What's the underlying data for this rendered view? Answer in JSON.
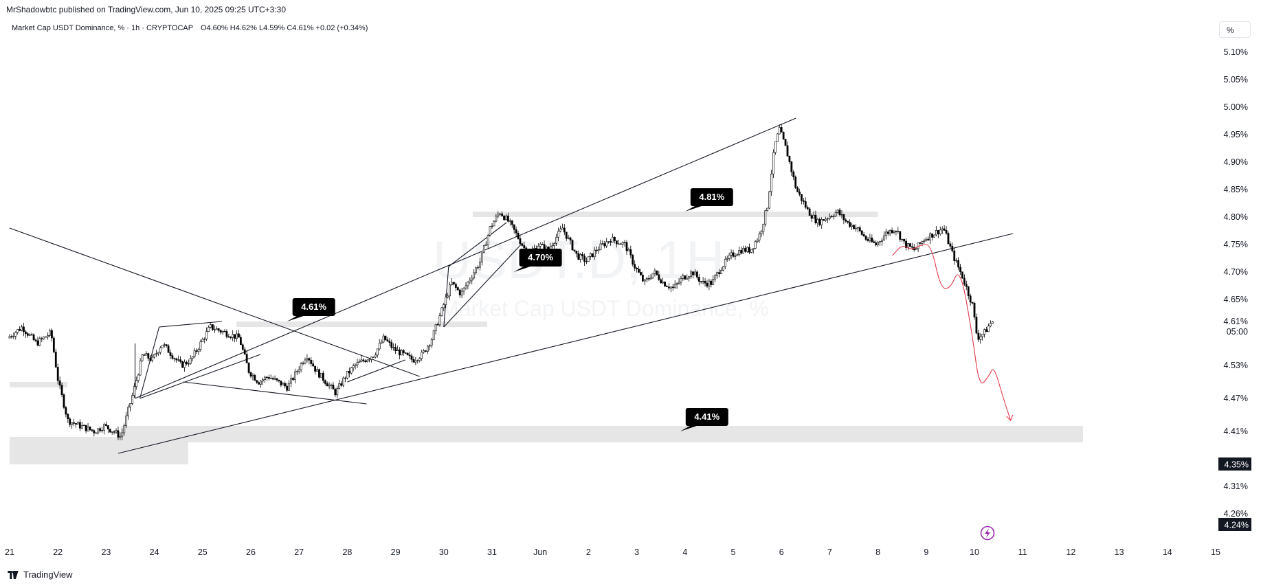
{
  "header": {
    "published_by": "MrShadowbtc published on TradingView.com, Jun 10, 2025 09:25 UTC+3:30"
  },
  "legend": {
    "symbol": "Market Cap USDT Dominance, % · 1h · CRYPTOCAP",
    "open": "O4.60%",
    "high": "H4.62%",
    "low": "L4.59%",
    "close": "C4.61%",
    "change": "+0.02 (+0.34%)"
  },
  "scale_button": {
    "label": "%"
  },
  "watermark": {
    "symbol": "USDT.D, 1H",
    "subtitle": "Market Cap USDT Dominance, %"
  },
  "footer": {
    "brand": "TradingView"
  },
  "icons": {
    "logo": "tradingview-logo-icon",
    "alert": "lightning-icon"
  },
  "colors": {
    "candle": "#000000",
    "zone": "#e6e6e6",
    "projection": "#e0394b",
    "label_bg": "#000000"
  },
  "chart_data": {
    "type": "candlestick",
    "title": "Market Cap USDT Dominance, %",
    "interval": "1h",
    "ylim": [
      4.22,
      5.135
    ],
    "x_ticks": [
      {
        "label": "21",
        "day": 21
      },
      {
        "label": "22",
        "day": 22
      },
      {
        "label": "23",
        "day": 23
      },
      {
        "label": "24",
        "day": 24
      },
      {
        "label": "25",
        "day": 25
      },
      {
        "label": "26",
        "day": 26
      },
      {
        "label": "27",
        "day": 27
      },
      {
        "label": "28",
        "day": 28
      },
      {
        "label": "29",
        "day": 29
      },
      {
        "label": "30",
        "day": 30
      },
      {
        "label": "31",
        "day": 31
      },
      {
        "label": "Jun",
        "day": 32
      },
      {
        "label": "2",
        "day": 33
      },
      {
        "label": "3",
        "day": 34
      },
      {
        "label": "4",
        "day": 35
      },
      {
        "label": "5",
        "day": 36
      },
      {
        "label": "6",
        "day": 37
      },
      {
        "label": "7",
        "day": 38
      },
      {
        "label": "8",
        "day": 39
      },
      {
        "label": "9",
        "day": 40
      },
      {
        "label": "10",
        "day": 41
      },
      {
        "label": "11",
        "day": 42
      },
      {
        "label": "12",
        "day": 43
      },
      {
        "label": "13",
        "day": 44
      },
      {
        "label": "14",
        "day": 45
      },
      {
        "label": "15",
        "day": 46
      }
    ],
    "y_ticks": [
      {
        "label": "5.10%",
        "value": 5.1
      },
      {
        "label": "5.05%",
        "value": 5.05
      },
      {
        "label": "5.00%",
        "value": 5.0
      },
      {
        "label": "4.95%",
        "value": 4.95
      },
      {
        "label": "4.90%",
        "value": 4.9
      },
      {
        "label": "4.85%",
        "value": 4.85
      },
      {
        "label": "4.80%",
        "value": 4.8
      },
      {
        "label": "4.75%",
        "value": 4.75
      },
      {
        "label": "4.70%",
        "value": 4.7
      },
      {
        "label": "4.65%",
        "value": 4.65
      },
      {
        "label": "4.53%",
        "value": 4.53
      },
      {
        "label": "4.47%",
        "value": 4.47
      },
      {
        "label": "4.41%",
        "value": 4.41
      },
      {
        "label": "4.31%",
        "value": 4.31
      },
      {
        "label": "4.26%",
        "value": 4.26
      }
    ],
    "price_badges": [
      {
        "label": "4.61%",
        "value": 4.61,
        "style": "plain",
        "sublabel": "05:00"
      },
      {
        "label": "4.35%",
        "value": 4.35,
        "style": "dark"
      },
      {
        "label": "4.24%",
        "value": 4.24,
        "style": "dark"
      }
    ],
    "series": [
      {
        "name": "USDT.D",
        "price_path": [
          [
            21.0,
            4.58
          ],
          [
            21.3,
            4.6
          ],
          [
            21.6,
            4.57
          ],
          [
            21.9,
            4.59
          ],
          [
            22.05,
            4.5
          ],
          [
            22.25,
            4.43
          ],
          [
            22.5,
            4.42
          ],
          [
            22.8,
            4.41
          ],
          [
            23.0,
            4.42
          ],
          [
            23.2,
            4.41
          ],
          [
            23.35,
            4.4
          ],
          [
            23.6,
            4.48
          ],
          [
            23.8,
            4.55
          ],
          [
            24.0,
            4.54
          ],
          [
            24.2,
            4.57
          ],
          [
            24.4,
            4.55
          ],
          [
            24.6,
            4.53
          ],
          [
            24.8,
            4.54
          ],
          [
            25.0,
            4.57
          ],
          [
            25.2,
            4.6
          ],
          [
            25.5,
            4.59
          ],
          [
            25.8,
            4.58
          ],
          [
            26.0,
            4.52
          ],
          [
            26.2,
            4.5
          ],
          [
            26.4,
            4.51
          ],
          [
            26.6,
            4.5
          ],
          [
            26.8,
            4.49
          ],
          [
            27.0,
            4.52
          ],
          [
            27.2,
            4.55
          ],
          [
            27.4,
            4.52
          ],
          [
            27.6,
            4.5
          ],
          [
            27.8,
            4.48
          ],
          [
            28.0,
            4.51
          ],
          [
            28.2,
            4.53
          ],
          [
            28.4,
            4.54
          ],
          [
            28.6,
            4.55
          ],
          [
            28.8,
            4.58
          ],
          [
            29.0,
            4.56
          ],
          [
            29.2,
            4.55
          ],
          [
            29.4,
            4.54
          ],
          [
            29.6,
            4.55
          ],
          [
            29.8,
            4.58
          ],
          [
            30.0,
            4.63
          ],
          [
            30.2,
            4.68
          ],
          [
            30.4,
            4.66
          ],
          [
            30.6,
            4.69
          ],
          [
            30.8,
            4.72
          ],
          [
            31.0,
            4.78
          ],
          [
            31.2,
            4.81
          ],
          [
            31.4,
            4.79
          ],
          [
            31.6,
            4.76
          ],
          [
            31.8,
            4.73
          ],
          [
            32.0,
            4.75
          ],
          [
            32.2,
            4.74
          ],
          [
            32.5,
            4.78
          ],
          [
            32.8,
            4.73
          ],
          [
            33.0,
            4.72
          ],
          [
            33.2,
            4.74
          ],
          [
            33.5,
            4.76
          ],
          [
            33.8,
            4.75
          ],
          [
            34.0,
            4.71
          ],
          [
            34.2,
            4.68
          ],
          [
            34.4,
            4.7
          ],
          [
            34.6,
            4.68
          ],
          [
            34.8,
            4.67
          ],
          [
            35.0,
            4.69
          ],
          [
            35.2,
            4.7
          ],
          [
            35.4,
            4.68
          ],
          [
            35.6,
            4.68
          ],
          [
            35.8,
            4.71
          ],
          [
            36.0,
            4.73
          ],
          [
            36.2,
            4.74
          ],
          [
            36.4,
            4.74
          ],
          [
            36.6,
            4.77
          ],
          [
            36.75,
            4.82
          ],
          [
            36.9,
            4.93
          ],
          [
            37.0,
            4.96
          ],
          [
            37.15,
            4.92
          ],
          [
            37.35,
            4.85
          ],
          [
            37.6,
            4.81
          ],
          [
            37.8,
            4.79
          ],
          [
            38.0,
            4.8
          ],
          [
            38.2,
            4.81
          ],
          [
            38.4,
            4.79
          ],
          [
            38.6,
            4.78
          ],
          [
            38.8,
            4.76
          ],
          [
            39.0,
            4.75
          ],
          [
            39.2,
            4.77
          ],
          [
            39.4,
            4.78
          ],
          [
            39.6,
            4.75
          ],
          [
            39.8,
            4.74
          ],
          [
            40.0,
            4.76
          ],
          [
            40.2,
            4.77
          ],
          [
            40.4,
            4.78
          ],
          [
            40.6,
            4.73
          ],
          [
            40.8,
            4.69
          ],
          [
            41.0,
            4.64
          ],
          [
            41.1,
            4.58
          ],
          [
            41.25,
            4.59
          ],
          [
            41.4,
            4.61
          ]
        ]
      }
    ],
    "annotations": [
      {
        "text": "4.61%",
        "x": 26.75,
        "y": 4.61
      },
      {
        "text": "4.70%",
        "x": 31.45,
        "y": 4.7
      },
      {
        "text": "4.81%",
        "x": 35.0,
        "y": 4.81
      },
      {
        "text": "4.41%",
        "x": 34.9,
        "y": 4.41
      }
    ],
    "zones": [
      {
        "x0": 21.0,
        "x1": 22.2,
        "y0": 4.49,
        "y1": 4.5
      },
      {
        "x0": 21.0,
        "x1": 24.7,
        "y0": 4.35,
        "y1": 4.4
      },
      {
        "x0": 23.3,
        "x1": 43.25,
        "y0": 4.39,
        "y1": 4.42
      },
      {
        "x0": 25.7,
        "x1": 30.9,
        "y0": 4.6,
        "y1": 4.61
      },
      {
        "x0": 30.6,
        "x1": 39.0,
        "y0": 4.8,
        "y1": 4.81
      }
    ],
    "trendlines": [
      {
        "points": [
          [
            23.6,
            4.47
          ],
          [
            37.3,
            4.98
          ]
        ]
      },
      {
        "points": [
          [
            23.25,
            4.37
          ],
          [
            41.8,
            4.77
          ]
        ]
      },
      {
        "points": [
          [
            21.0,
            4.78
          ],
          [
            29.5,
            4.51
          ]
        ]
      },
      {
        "points": [
          [
            23.6,
            4.57
          ],
          [
            23.6,
            4.47
          ]
        ]
      },
      {
        "points": [
          [
            24.1,
            4.6
          ],
          [
            25.4,
            4.61
          ]
        ]
      },
      {
        "points": [
          [
            24.1,
            4.6
          ],
          [
            23.7,
            4.47
          ]
        ]
      },
      {
        "points": [
          [
            23.7,
            4.47
          ],
          [
            26.2,
            4.55
          ]
        ]
      },
      {
        "points": [
          [
            24.6,
            4.5
          ],
          [
            28.4,
            4.46
          ]
        ]
      },
      {
        "points": [
          [
            28.0,
            4.5
          ],
          [
            29.2,
            4.54
          ]
        ]
      },
      {
        "points": [
          [
            30.1,
            4.71
          ],
          [
            31.3,
            4.79
          ]
        ]
      },
      {
        "points": [
          [
            30.1,
            4.71
          ],
          [
            30.0,
            4.6
          ]
        ]
      },
      {
        "points": [
          [
            30.0,
            4.6
          ],
          [
            31.6,
            4.75
          ]
        ]
      }
    ],
    "projection": {
      "points": [
        [
          39.3,
          4.73
        ],
        [
          39.5,
          4.75
        ],
        [
          39.7,
          4.74
        ],
        [
          39.9,
          4.75
        ],
        [
          40.1,
          4.75
        ],
        [
          40.3,
          4.67
        ],
        [
          40.5,
          4.67
        ],
        [
          40.7,
          4.71
        ],
        [
          40.95,
          4.59
        ],
        [
          41.1,
          4.49
        ],
        [
          41.3,
          4.51
        ],
        [
          41.4,
          4.53
        ],
        [
          41.6,
          4.47
        ],
        [
          41.75,
          4.43
        ]
      ]
    }
  }
}
